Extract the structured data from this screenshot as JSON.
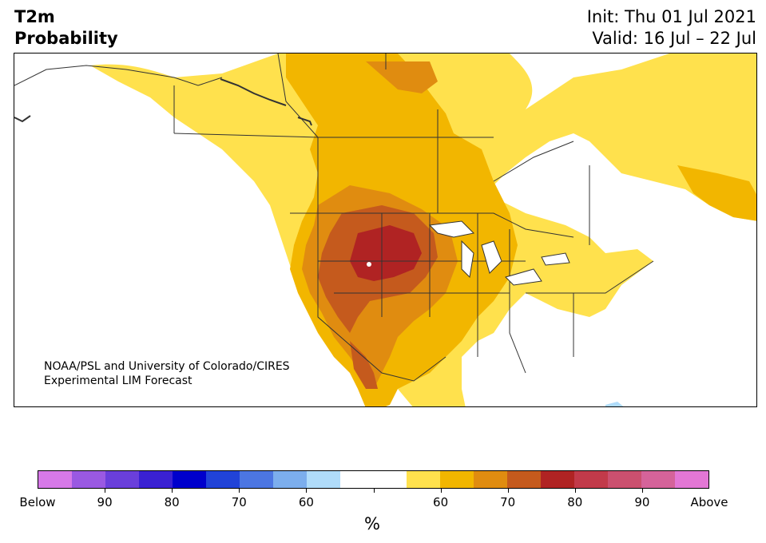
{
  "title": {
    "left_line1": "T2m",
    "left_line2": "Probability",
    "init": "Init: Thu 01 Jul 2021",
    "valid": "Valid: 16 Jul – 22 Jul"
  },
  "credit": {
    "line1": "NOAA/PSL and University of Colorado/CIRES",
    "line2": "Experimental LIM Forecast"
  },
  "colorbar": {
    "unit": "%",
    "colors": [
      "#d779e8",
      "#9a59e2",
      "#6a3fdb",
      "#3a21d3",
      "#0000cc",
      "#2143d8",
      "#4c76e2",
      "#7caeed",
      "#b0dcfa",
      "#ffffff",
      "#ffffff",
      "#ffe14d",
      "#f2b600",
      "#e08c10",
      "#c55a1d",
      "#b02323",
      "#c23a4a",
      "#cb506f",
      "#d5639a",
      "#e377d5"
    ],
    "labels": [
      {
        "text": "Below",
        "i": 0
      },
      {
        "text": "90",
        "i": 2
      },
      {
        "text": "80",
        "i": 4
      },
      {
        "text": "70",
        "i": 6
      },
      {
        "text": "60",
        "i": 8
      },
      {
        "text": "60",
        "i": 12
      },
      {
        "text": "70",
        "i": 14
      },
      {
        "text": "80",
        "i": 16
      },
      {
        "text": "90",
        "i": 18
      },
      {
        "text": "Above",
        "i": 20
      }
    ]
  },
  "map": {
    "region": "North America",
    "variable": "2 m temperature probability",
    "colors": {
      "land": "#ffffff",
      "p55": "#ffe14d",
      "p60": "#f2b600",
      "p65": "#e08c10",
      "p70": "#c55a1d",
      "p75": "#b02323",
      "below_light": "#b0dcfa",
      "border": "#333333"
    }
  }
}
